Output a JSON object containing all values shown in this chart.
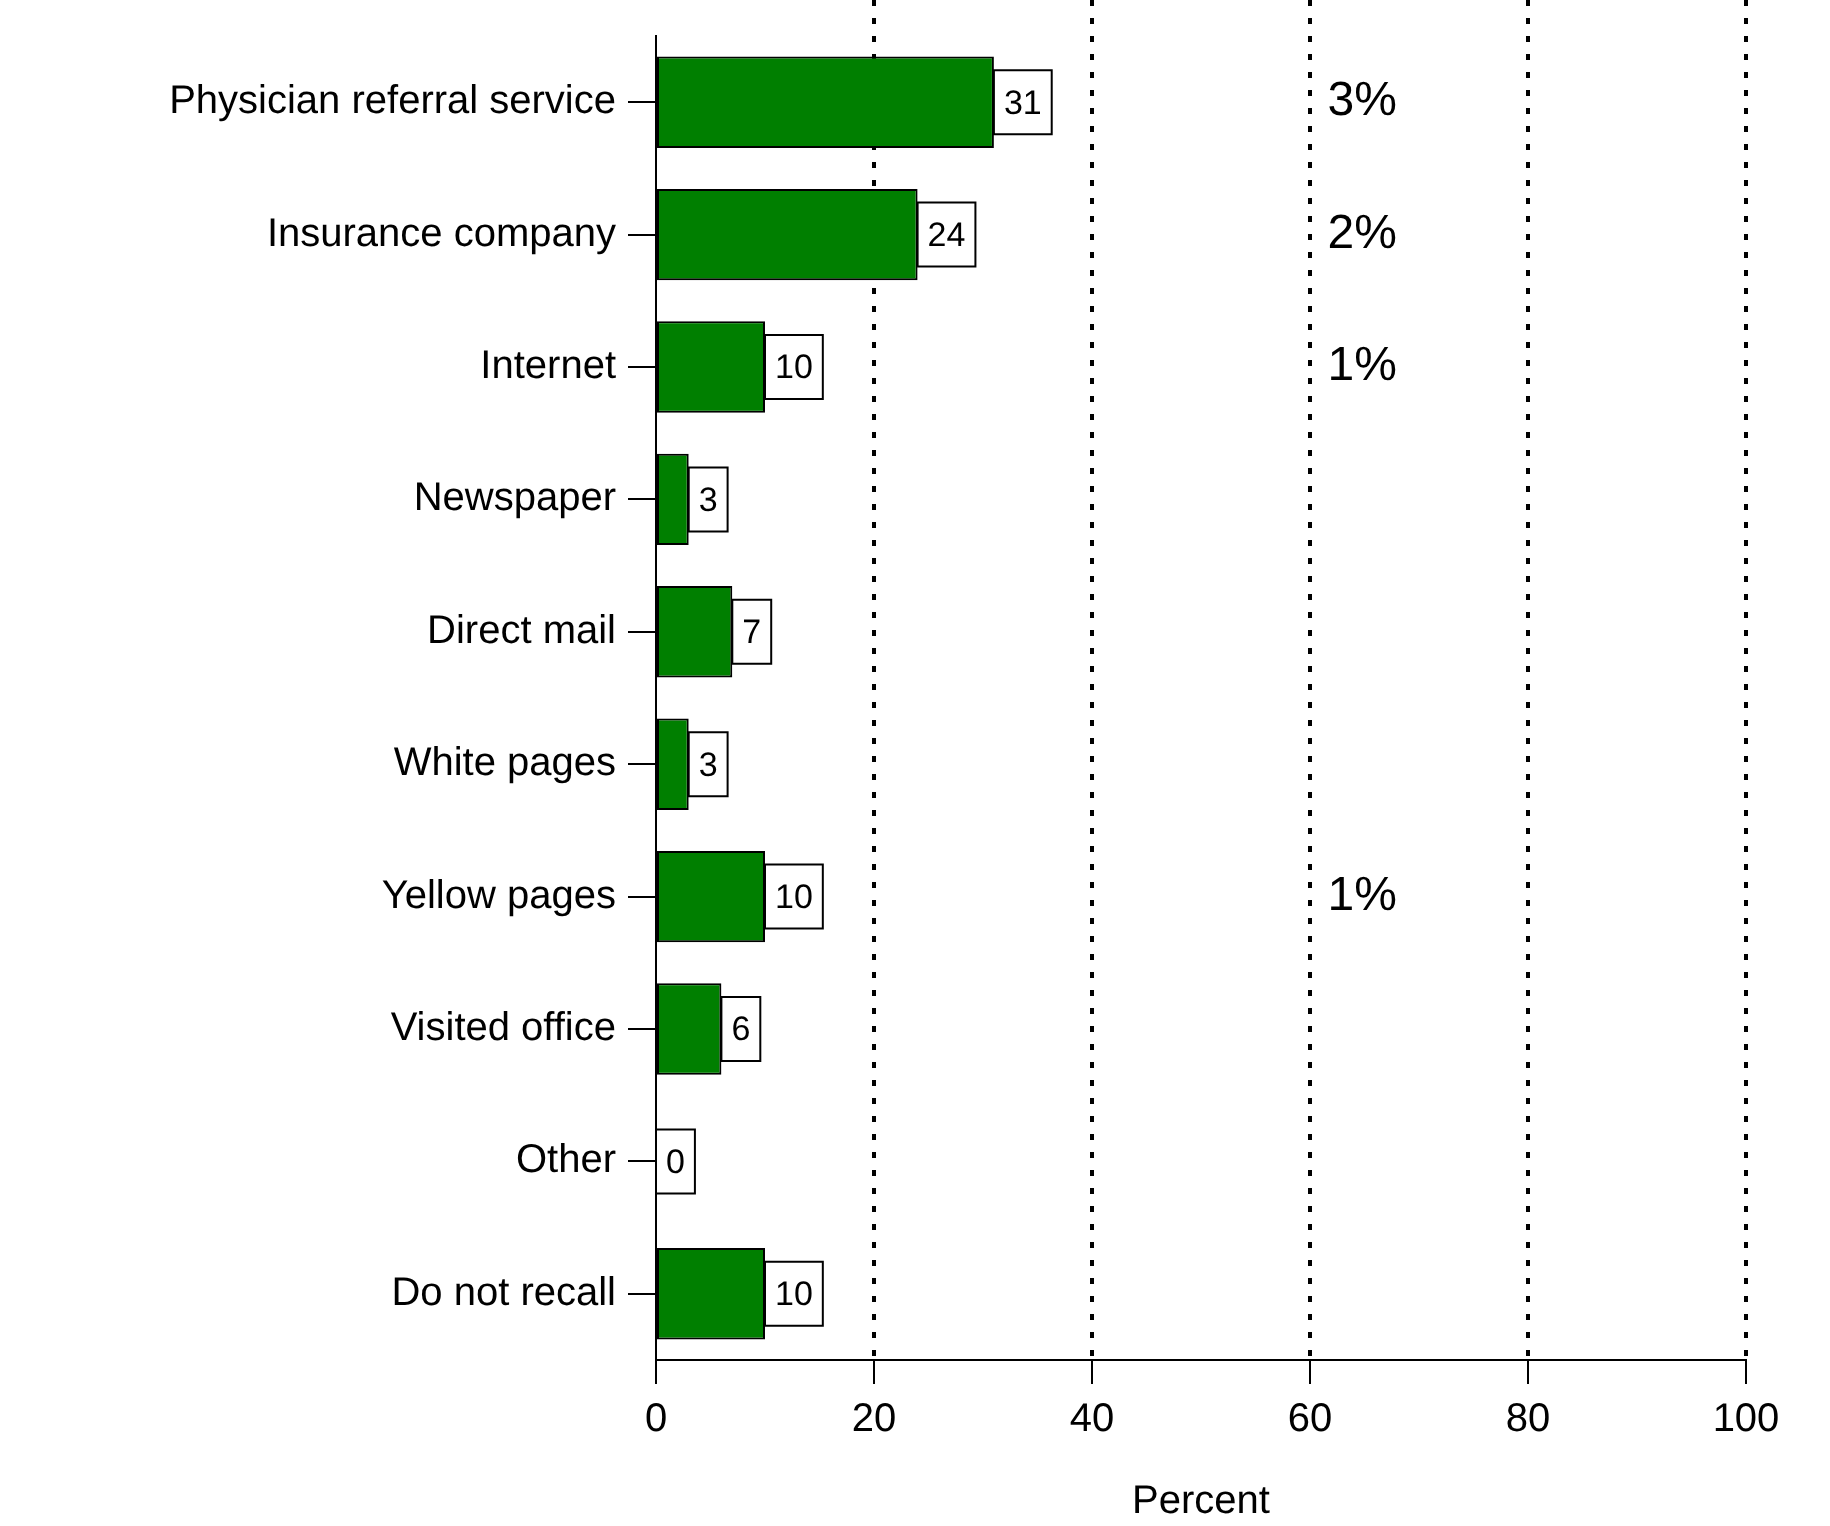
{
  "chart_data": {
    "type": "bar",
    "orientation": "horizontal",
    "xlabel": "Percent",
    "categories": [
      "Physician referral service",
      "Insurance company",
      "Internet",
      "Newspaper",
      "Direct mail",
      "White pages",
      "Yellow pages",
      "Visited office",
      "Other",
      "Do not recall"
    ],
    "values": [
      31,
      24,
      10,
      3,
      7,
      3,
      10,
      6,
      0,
      10
    ],
    "color": "#007f00",
    "xlim": [
      0,
      100
    ],
    "xticks": [
      0,
      20,
      40,
      60,
      80,
      100
    ],
    "grid": "x",
    "data_labels": true,
    "annotations": [
      "3%",
      "2%",
      "1%",
      "1%"
    ]
  }
}
